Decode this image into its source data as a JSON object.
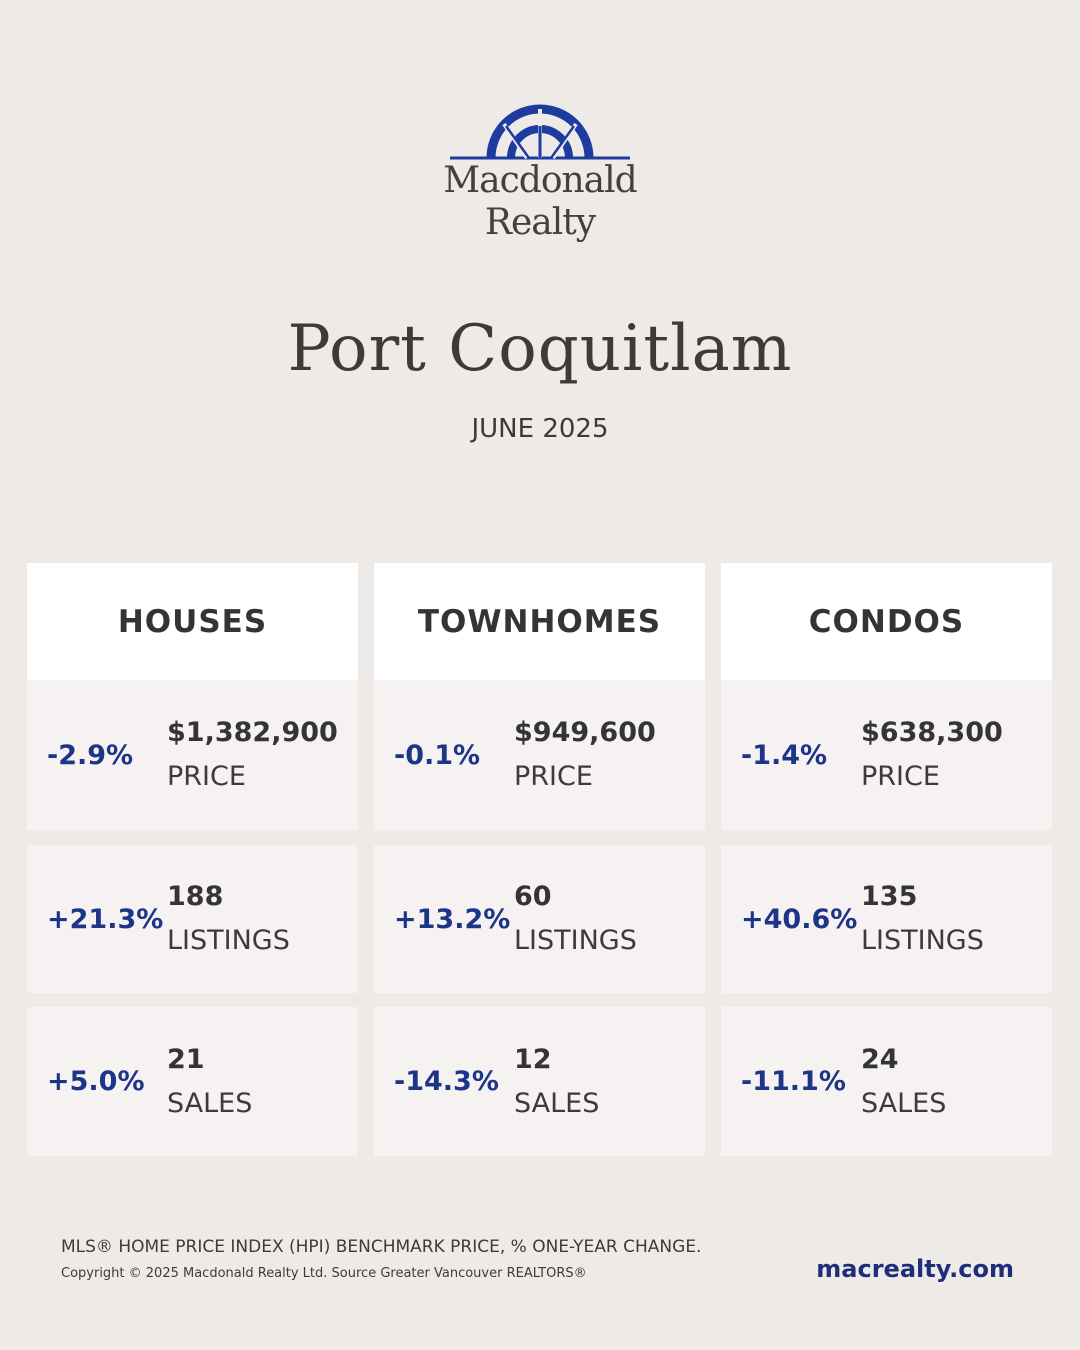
{
  "brand": {
    "name_line1": "Macdonald",
    "name_line2": "Realty",
    "color": "#1d3ba0"
  },
  "title": "Port Coquitlam",
  "subtitle": "JUNE 2025",
  "columns": [
    {
      "header": "HOUSES",
      "rows": [
        {
          "change": "-2.9%",
          "value": "$1,382,900",
          "label": "PRICE"
        },
        {
          "change": "+21.3%",
          "value": "188",
          "label": "LISTINGS"
        },
        {
          "change": "+5.0%",
          "value": "21",
          "label": "SALES"
        }
      ]
    },
    {
      "header": "TOWNHOMES",
      "rows": [
        {
          "change": "-0.1%",
          "value": "$949,600",
          "label": "PRICE"
        },
        {
          "change": "+13.2%",
          "value": "60",
          "label": "LISTINGS"
        },
        {
          "change": "-14.3%",
          "value": "12",
          "label": "SALES"
        }
      ]
    },
    {
      "header": "CONDOS",
      "rows": [
        {
          "change": "-1.4%",
          "value": "$638,300",
          "label": "PRICE"
        },
        {
          "change": "+40.6%",
          "value": "135",
          "label": "LISTINGS"
        },
        {
          "change": "-11.1%",
          "value": "24",
          "label": "SALES"
        }
      ]
    }
  ],
  "footer": {
    "note": "MLS® HOME PRICE INDEX (HPI) BENCHMARK PRICE, % ONE-YEAR CHANGE.",
    "copyright": "Copyright © 2025 Macdonald Realty Ltd. Source Greater Vancouver REALTORS®",
    "website": "macrealty.com"
  }
}
